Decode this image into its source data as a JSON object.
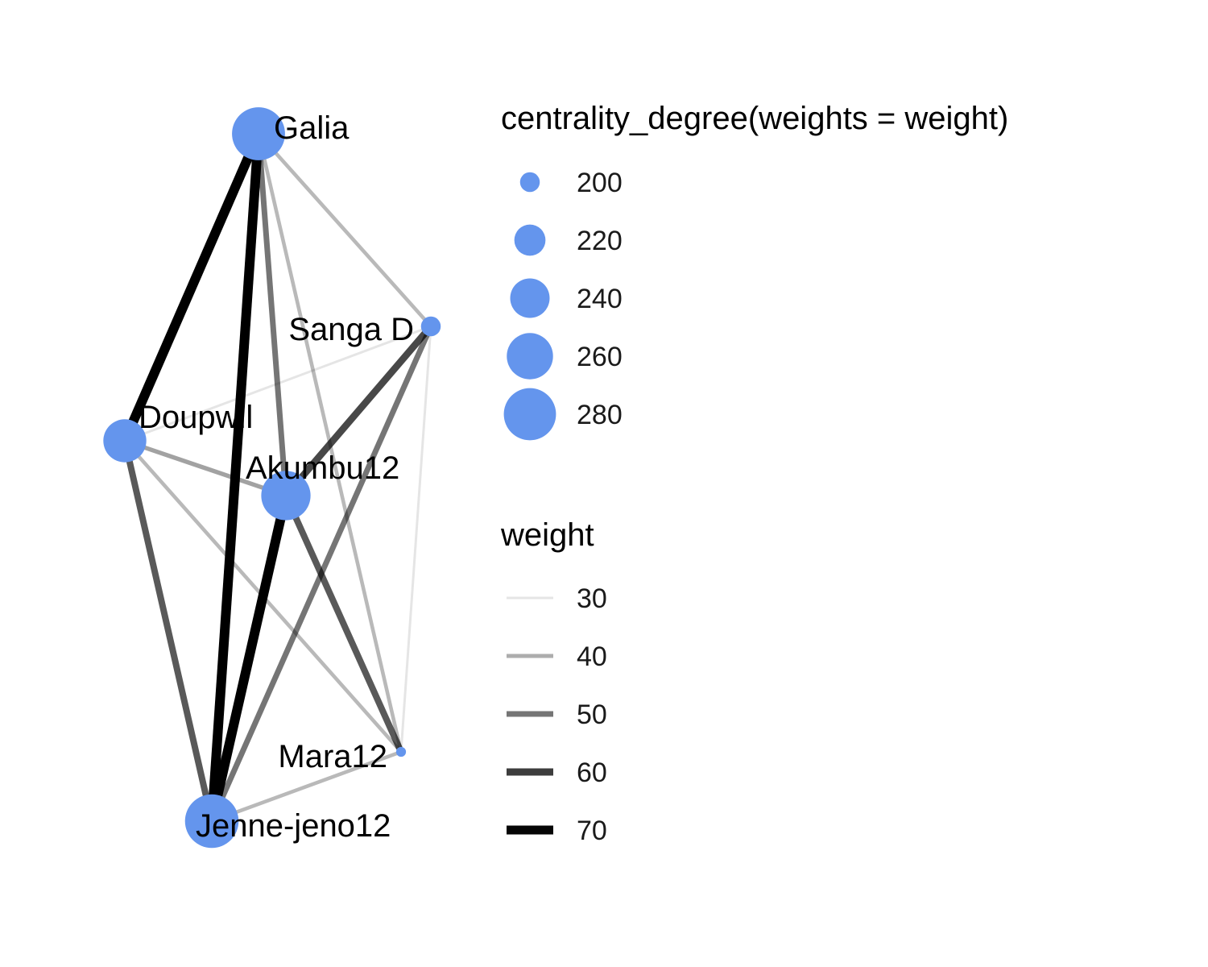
{
  "chart_data": {
    "type": "network",
    "node_color": "#6495ED",
    "edge_color": "#000000",
    "nodes": [
      {
        "name": "Galia",
        "centrality": 283
      },
      {
        "name": "Sanga D",
        "centrality": 200
      },
      {
        "name": "Doupwil",
        "centrality": 250
      },
      {
        "name": "Akumbu12",
        "centrality": 270
      },
      {
        "name": "Mara12",
        "centrality": 190
      },
      {
        "name": "Jenne-jeno12",
        "centrality": 285
      }
    ],
    "edges": [
      {
        "from": "Galia",
        "to": "Doupwil",
        "weight": 75
      },
      {
        "from": "Galia",
        "to": "Jenne-jeno12",
        "weight": 75
      },
      {
        "from": "Galia",
        "to": "Akumbu12",
        "weight": 50
      },
      {
        "from": "Galia",
        "to": "Sanga D",
        "weight": 38
      },
      {
        "from": "Galia",
        "to": "Mara12",
        "weight": 38
      },
      {
        "from": "Sanga D",
        "to": "Akumbu12",
        "weight": 58
      },
      {
        "from": "Sanga D",
        "to": "Jenne-jeno12",
        "weight": 50
      },
      {
        "from": "Sanga D",
        "to": "Doupwil",
        "weight": 30
      },
      {
        "from": "Sanga D",
        "to": "Mara12",
        "weight": 30
      },
      {
        "from": "Doupwil",
        "to": "Akumbu12",
        "weight": 42
      },
      {
        "from": "Doupwil",
        "to": "Jenne-jeno12",
        "weight": 55
      },
      {
        "from": "Doupwil",
        "to": "Mara12",
        "weight": 38
      },
      {
        "from": "Akumbu12",
        "to": "Jenne-jeno12",
        "weight": 75
      },
      {
        "from": "Akumbu12",
        "to": "Mara12",
        "weight": 55
      },
      {
        "from": "Mara12",
        "to": "Jenne-jeno12",
        "weight": 38
      }
    ],
    "legend_size": {
      "title": "centrality_degree(weights = weight)",
      "entries": [
        {
          "label": "200",
          "value": 200
        },
        {
          "label": "220",
          "value": 220
        },
        {
          "label": "240",
          "value": 240
        },
        {
          "label": "260",
          "value": 260
        },
        {
          "label": "280",
          "value": 280
        }
      ]
    },
    "legend_weight": {
      "title": "weight",
      "entries": [
        {
          "label": "30",
          "value": 30
        },
        {
          "label": "40",
          "value": 40
        },
        {
          "label": "50",
          "value": 50
        },
        {
          "label": "60",
          "value": 60
        },
        {
          "label": "70",
          "value": 70
        }
      ]
    }
  }
}
